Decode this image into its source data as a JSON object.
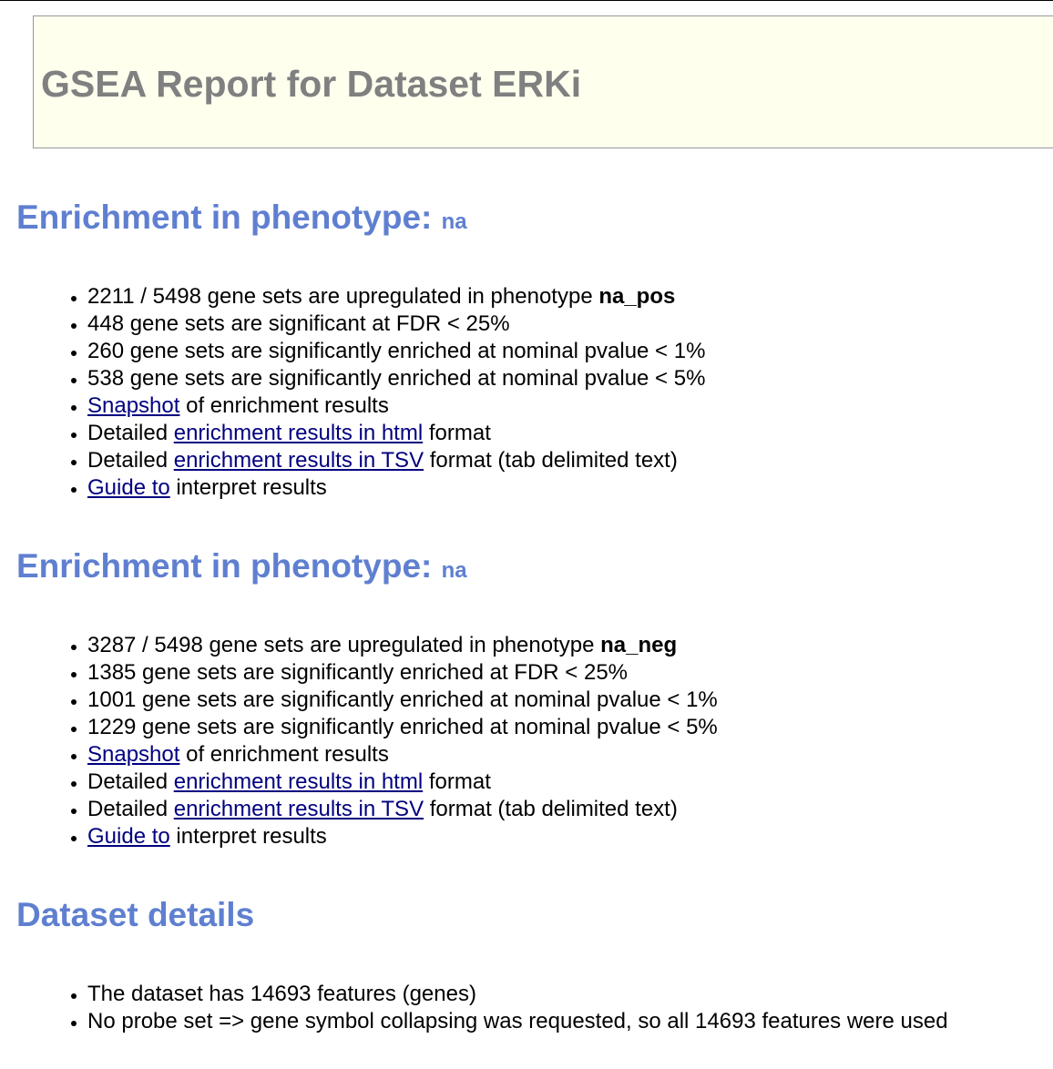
{
  "title": "GSEA Report for Dataset ERKi",
  "sections": [
    {
      "heading": "Enrichment in phenotype: ",
      "phenotype": "na",
      "items": [
        {
          "text": "2211 / 5498 gene sets are upregulated in phenotype ",
          "bold": "na_pos"
        },
        {
          "text": "448 gene sets are significant at FDR < 25%"
        },
        {
          "text": "260 gene sets are significantly enriched at nominal pvalue < 1%"
        },
        {
          "text": "538 gene sets are significantly enriched at nominal pvalue < 5%"
        },
        {
          "pre": "",
          "link": "Snapshot",
          "post": " of enrichment results"
        },
        {
          "pre": "Detailed ",
          "link": "enrichment results in html",
          "post": " format"
        },
        {
          "pre": "Detailed ",
          "link": "enrichment results in TSV",
          "post": " format (tab delimited text)"
        },
        {
          "pre": "",
          "link": "Guide to",
          "post": " interpret results"
        }
      ]
    },
    {
      "heading": "Enrichment in phenotype: ",
      "phenotype": "na",
      "items": [
        {
          "text": "3287 / 5498 gene sets are upregulated in phenotype ",
          "bold": "na_neg"
        },
        {
          "text": "1385 gene sets are significantly enriched at FDR < 25%"
        },
        {
          "text": "1001 gene sets are significantly enriched at nominal pvalue < 1%"
        },
        {
          "text": "1229 gene sets are significantly enriched at nominal pvalue < 5%"
        },
        {
          "pre": "",
          "link": "Snapshot",
          "post": " of enrichment results"
        },
        {
          "pre": "Detailed ",
          "link": "enrichment results in html",
          "post": " format"
        },
        {
          "pre": "Detailed ",
          "link": "enrichment results in TSV",
          "post": " format (tab delimited text)"
        },
        {
          "pre": "",
          "link": "Guide to",
          "post": " interpret results"
        }
      ]
    }
  ],
  "dataset": {
    "heading": "Dataset details",
    "items": [
      "The dataset has 14693 features (genes)",
      "No probe set => gene symbol collapsing was requested, so all 14693 features were used"
    ]
  },
  "colors": {
    "heading": "#5f7fd0",
    "title": "#808080",
    "title_background": "#ffffee",
    "link": "#000080"
  }
}
